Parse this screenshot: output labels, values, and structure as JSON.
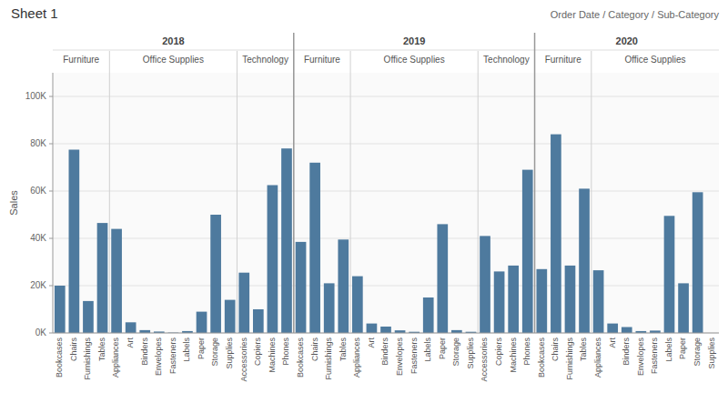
{
  "chart_data": {
    "type": "bar",
    "title": "Sheet 1",
    "subtitle": "Order Date / Category / Sub-Category",
    "y_label": "Sales",
    "color": "#4e7a9e",
    "grid": true,
    "categories": [
      "Bookcases",
      "Chairs",
      "Furnishings",
      "Tables",
      "Appliances",
      "Art",
      "Binders",
      "Envelopes",
      "Fasteners",
      "Labels",
      "Paper",
      "Storage",
      "Supplies",
      "Accessories",
      "Copiers",
      "Machines",
      "Phones",
      "Bookcases",
      "Chairs",
      "Furnishings",
      "Tables",
      "Appliances",
      "Art",
      "Binders",
      "Envelopes",
      "Fasteners",
      "Labels",
      "Paper",
      "Storage",
      "Supplies",
      "Accessories",
      "Copiers",
      "Machines",
      "Phones",
      "Bookcases",
      "Chairs",
      "Furnishings",
      "Tables",
      "Appliances",
      "Art",
      "Binders",
      "Envelopes",
      "Fasteners",
      "Labels",
      "Paper",
      "Storage",
      "Supplies"
    ],
    "category_years": [
      "2018",
      "2018",
      "2018",
      "2018",
      "2018",
      "2018",
      "2018",
      "2018",
      "2018",
      "2018",
      "2018",
      "2018",
      "2018",
      "2018",
      "2018",
      "2018",
      "2018",
      "2019",
      "2019",
      "2019",
      "2019",
      "2019",
      "2019",
      "2019",
      "2019",
      "2019",
      "2019",
      "2019",
      "2019",
      "2019",
      "2019",
      "2019",
      "2019",
      "2019",
      "2020",
      "2020",
      "2020",
      "2020",
      "2020",
      "2020",
      "2020",
      "2020",
      "2020",
      "2020",
      "2020",
      "2020",
      "2020"
    ],
    "category_groups": [
      "Furniture",
      "Furniture",
      "Furniture",
      "Furniture",
      "Office Supplies",
      "Office Supplies",
      "Office Supplies",
      "Office Supplies",
      "Office Supplies",
      "Office Supplies",
      "Office Supplies",
      "Office Supplies",
      "Office Supplies",
      "Technology",
      "Technology",
      "Technology",
      "Technology",
      "Furniture",
      "Furniture",
      "Furniture",
      "Furniture",
      "Office Supplies",
      "Office Supplies",
      "Office Supplies",
      "Office Supplies",
      "Office Supplies",
      "Office Supplies",
      "Office Supplies",
      "Office Supplies",
      "Office Supplies",
      "Technology",
      "Technology",
      "Technology",
      "Technology",
      "Furniture",
      "Furniture",
      "Furniture",
      "Furniture",
      "Office Supplies",
      "Office Supplies",
      "Office Supplies",
      "Office Supplies",
      "Office Supplies",
      "Office Supplies",
      "Office Supplies",
      "Office Supplies",
      "Office Supplies"
    ],
    "values": [
      20000,
      77500,
      13500,
      46500,
      44000,
      4500,
      1200,
      600,
      150,
      800,
      9000,
      50000,
      14000,
      25500,
      10000,
      62500,
      78000,
      38500,
      72000,
      21000,
      39500,
      24000,
      4000,
      2700,
      1100,
      500,
      15000,
      46000,
      1200,
      500,
      41000,
      26000,
      28500,
      69000,
      27000,
      84000,
      28500,
      61000,
      26500,
      4000,
      2500,
      800,
      1000,
      49500,
      21000,
      59500,
      0
    ],
    "ylim": [
      0,
      110000
    ],
    "yticks": [
      {
        "value": 0,
        "label": "0K"
      },
      {
        "value": 20000,
        "label": "20K"
      },
      {
        "value": 40000,
        "label": "40K"
      },
      {
        "value": 60000,
        "label": "60K"
      },
      {
        "value": 80000,
        "label": "80K"
      },
      {
        "value": 100000,
        "label": "100K"
      }
    ]
  }
}
